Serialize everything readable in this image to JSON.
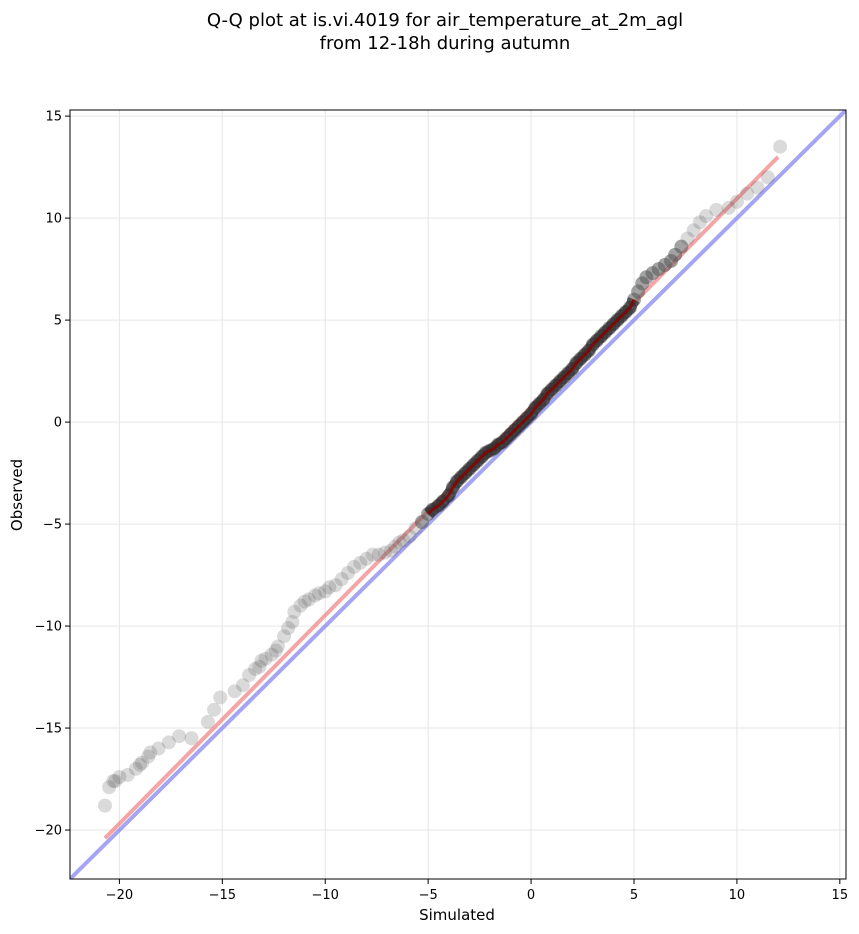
{
  "chart_data": {
    "type": "scatter",
    "title_line1": "Q-Q plot at is.vi.4019 for air_temperature_at_2m_agl",
    "title_line2": "from 12-18h during autumn",
    "xlabel": "Simulated",
    "ylabel": "Observed",
    "xlim": [
      -22.4,
      15.3
    ],
    "ylim": [
      -22.4,
      15.3
    ],
    "xticks": [
      -20,
      -15,
      -10,
      -5,
      0,
      5,
      10,
      15
    ],
    "yticks": [
      -20,
      -15,
      -10,
      -5,
      0,
      5,
      10,
      15
    ],
    "xtick_labels": [
      "−20",
      "−15",
      "−10",
      "−5",
      "0",
      "5",
      "10",
      "15"
    ],
    "ytick_labels": [
      "−20",
      "−15",
      "−10",
      "−5",
      "0",
      "5",
      "10",
      "15"
    ],
    "grid": true,
    "colors": {
      "points": "#555555",
      "fit_line": "#f08080",
      "identity_line": "#8080f0",
      "center_fit": "#8b0000",
      "center_identity": "#1a1a8c"
    },
    "reference_lines": [
      {
        "kind": "identity",
        "from": [
          -22.4,
          -22.4
        ],
        "to": [
          15.3,
          15.3
        ]
      },
      {
        "kind": "fit",
        "from": [
          -20.7,
          -20.4
        ],
        "to": [
          12.0,
          13.0
        ]
      }
    ],
    "series": [
      {
        "x": [
          -20.7,
          -20.5,
          -20.3,
          -20.2,
          -20.0,
          -19.6,
          -19.2,
          -19.0,
          -18.9,
          -18.6,
          -18.5,
          -18.1,
          -17.6,
          -17.1,
          -16.5,
          -15.7,
          -15.4,
          -15.1,
          -14.4,
          -14.0,
          -13.7,
          -13.4,
          -13.2,
          -13.1,
          -12.9,
          -12.6,
          -12.4,
          -12.3,
          -12.0,
          -11.8,
          -11.6,
          -11.5,
          -11.2,
          -11.0,
          -10.8,
          -10.5,
          -10.3,
          -10.0,
          -9.8,
          -9.5,
          -9.2,
          -8.9,
          -8.6,
          -8.3,
          -8.0,
          -7.7,
          -7.4,
          -7.1,
          -6.8,
          -6.6,
          -6.4,
          -6.2,
          -5.9,
          -5.6,
          -5.3,
          -5.0,
          -4.8,
          -4.5,
          -4.3,
          -4.0,
          -3.8,
          -3.6,
          -3.4,
          -3.2,
          -3.0,
          -2.8,
          -2.6,
          -2.4,
          -2.2,
          -2.0,
          -1.8,
          -1.6,
          -1.4,
          -1.2,
          -1.0,
          -0.8,
          -0.6,
          -0.4,
          -0.2,
          0.0,
          0.2,
          0.4,
          0.6,
          0.8,
          1.0,
          1.2,
          1.4,
          1.6,
          1.8,
          2.0,
          2.2,
          2.4,
          2.6,
          2.8,
          3.0,
          3.2,
          3.4,
          3.6,
          3.8,
          4.0,
          4.2,
          4.4,
          4.6,
          4.8,
          5.0,
          5.2,
          5.4,
          5.6,
          5.9,
          6.2,
          6.5,
          6.8,
          7.0,
          7.3,
          7.6,
          7.9,
          8.2,
          8.5,
          9.0,
          9.6,
          10.0,
          10.5,
          11.0,
          11.5,
          12.1
        ],
        "y": [
          -18.8,
          -17.9,
          -17.6,
          -17.6,
          -17.4,
          -17.3,
          -17.0,
          -16.8,
          -16.7,
          -16.4,
          -16.2,
          -16.0,
          -15.7,
          -15.4,
          -15.5,
          -14.7,
          -14.1,
          -13.5,
          -13.2,
          -12.9,
          -12.4,
          -12.1,
          -12.0,
          -11.7,
          -11.6,
          -11.4,
          -11.2,
          -11.0,
          -10.5,
          -10.1,
          -9.8,
          -9.3,
          -9.0,
          -8.8,
          -8.7,
          -8.5,
          -8.4,
          -8.3,
          -8.1,
          -8.0,
          -7.7,
          -7.4,
          -7.1,
          -6.9,
          -6.7,
          -6.5,
          -6.5,
          -6.4,
          -6.3,
          -6.1,
          -5.9,
          -5.8,
          -5.6,
          -5.2,
          -4.9,
          -4.5,
          -4.3,
          -4.1,
          -3.9,
          -3.6,
          -3.2,
          -2.9,
          -2.7,
          -2.5,
          -2.3,
          -2.1,
          -1.9,
          -1.7,
          -1.5,
          -1.4,
          -1.3,
          -1.1,
          -1.0,
          -0.8,
          -0.6,
          -0.4,
          -0.2,
          0.0,
          0.2,
          0.4,
          0.7,
          0.9,
          1.1,
          1.4,
          1.6,
          1.8,
          2.0,
          2.2,
          2.4,
          2.6,
          2.9,
          3.1,
          3.3,
          3.5,
          3.8,
          4.0,
          4.2,
          4.4,
          4.6,
          4.8,
          5.0,
          5.2,
          5.4,
          5.6,
          6.0,
          6.4,
          6.8,
          7.1,
          7.3,
          7.5,
          7.7,
          7.9,
          8.2,
          8.6,
          9.0,
          9.4,
          9.8,
          10.1,
          10.4,
          10.5,
          10.8,
          11.2,
          11.5,
          12.0,
          13.5
        ]
      }
    ]
  }
}
